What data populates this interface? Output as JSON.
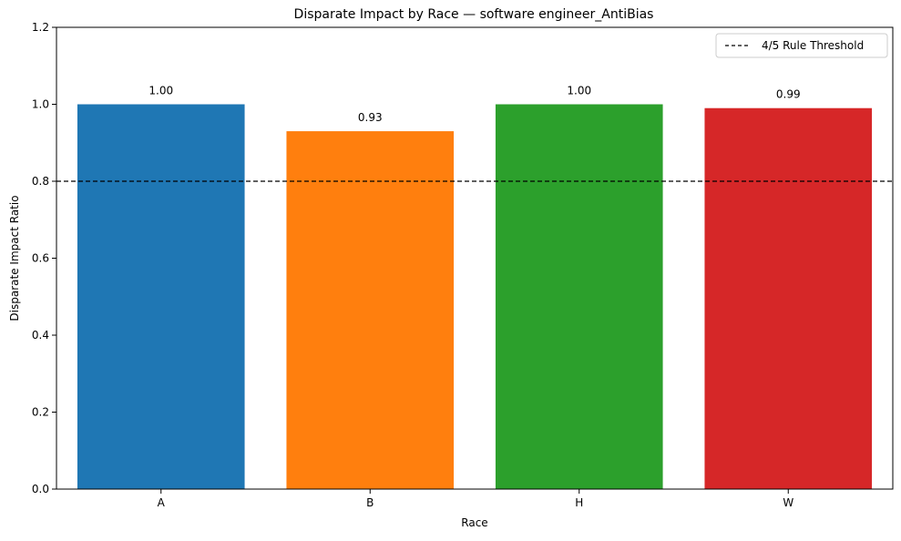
{
  "chart_data": {
    "type": "bar",
    "title": "Disparate Impact by Race — software engineer_AntiBias",
    "xlabel": "Race",
    "ylabel": "Disparate Impact Ratio",
    "categories": [
      "A",
      "B",
      "H",
      "W"
    ],
    "values": [
      1.0,
      0.93,
      1.0,
      0.99
    ],
    "data_labels": [
      "1.00",
      "0.93",
      "1.00",
      "0.99"
    ],
    "bar_colors": [
      "#1f77b4",
      "#ff7f0e",
      "#2ca02c",
      "#d62728"
    ],
    "ylim": [
      0,
      1.2
    ],
    "yticks": [
      0.0,
      0.2,
      0.4,
      0.6,
      0.8,
      1.0,
      1.2
    ],
    "ytick_labels": [
      "0.0",
      "0.2",
      "0.4",
      "0.6",
      "0.8",
      "1.0",
      "1.2"
    ],
    "grid": false,
    "threshold": {
      "value": 0.8,
      "label": "4/5 Rule Threshold",
      "style": "dashed",
      "color": "#000000"
    },
    "legend": {
      "position": "top-right",
      "entries": [
        "4/5 Rule Threshold"
      ]
    }
  }
}
